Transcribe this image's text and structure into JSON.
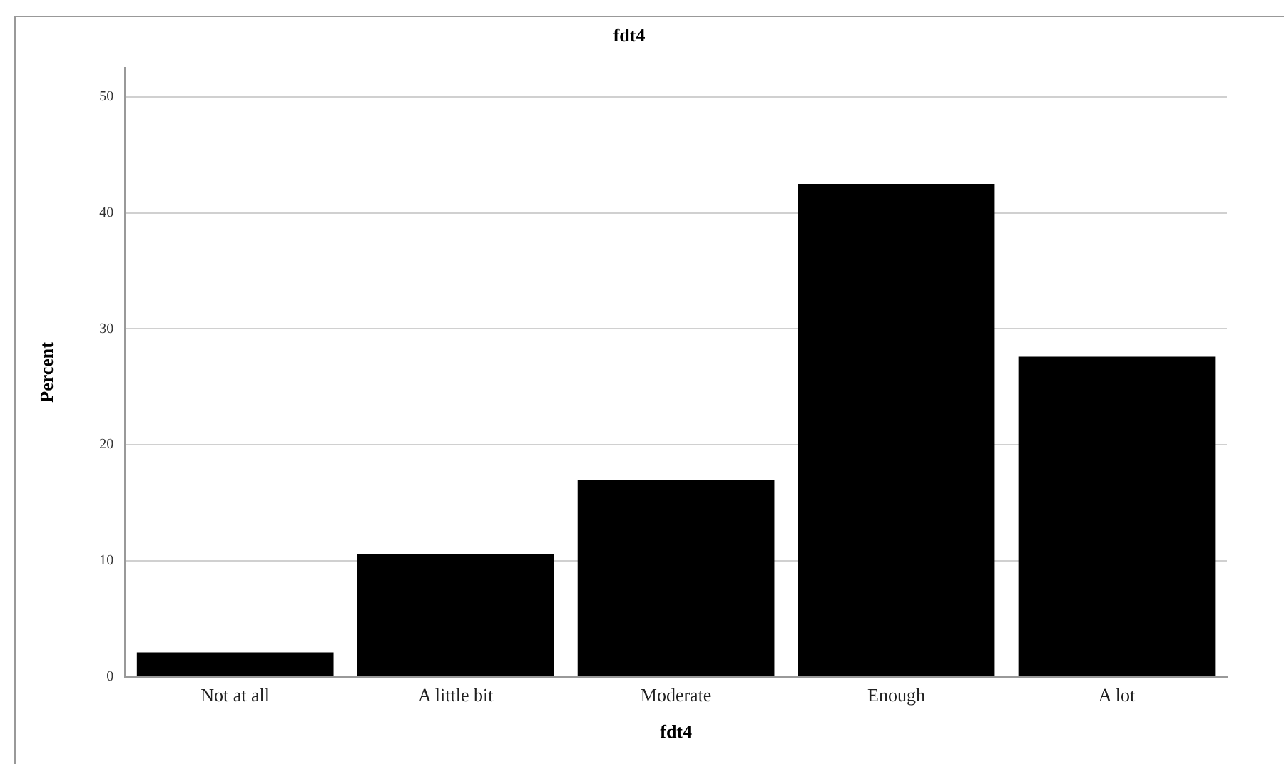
{
  "chart_data": {
    "type": "bar",
    "title": "fdt4",
    "xlabel": "fdt4",
    "ylabel": "Percent",
    "categories": [
      "Not at all",
      "A little bit",
      "Moderate",
      "Enough",
      "A lot"
    ],
    "values": [
      2.1,
      10.6,
      17.0,
      42.5,
      27.6
    ],
    "color": "#000000",
    "ylim": [
      0,
      52.5
    ],
    "yticks": [
      0,
      10,
      20,
      30,
      40,
      50
    ],
    "grid": "y",
    "legend": false
  }
}
